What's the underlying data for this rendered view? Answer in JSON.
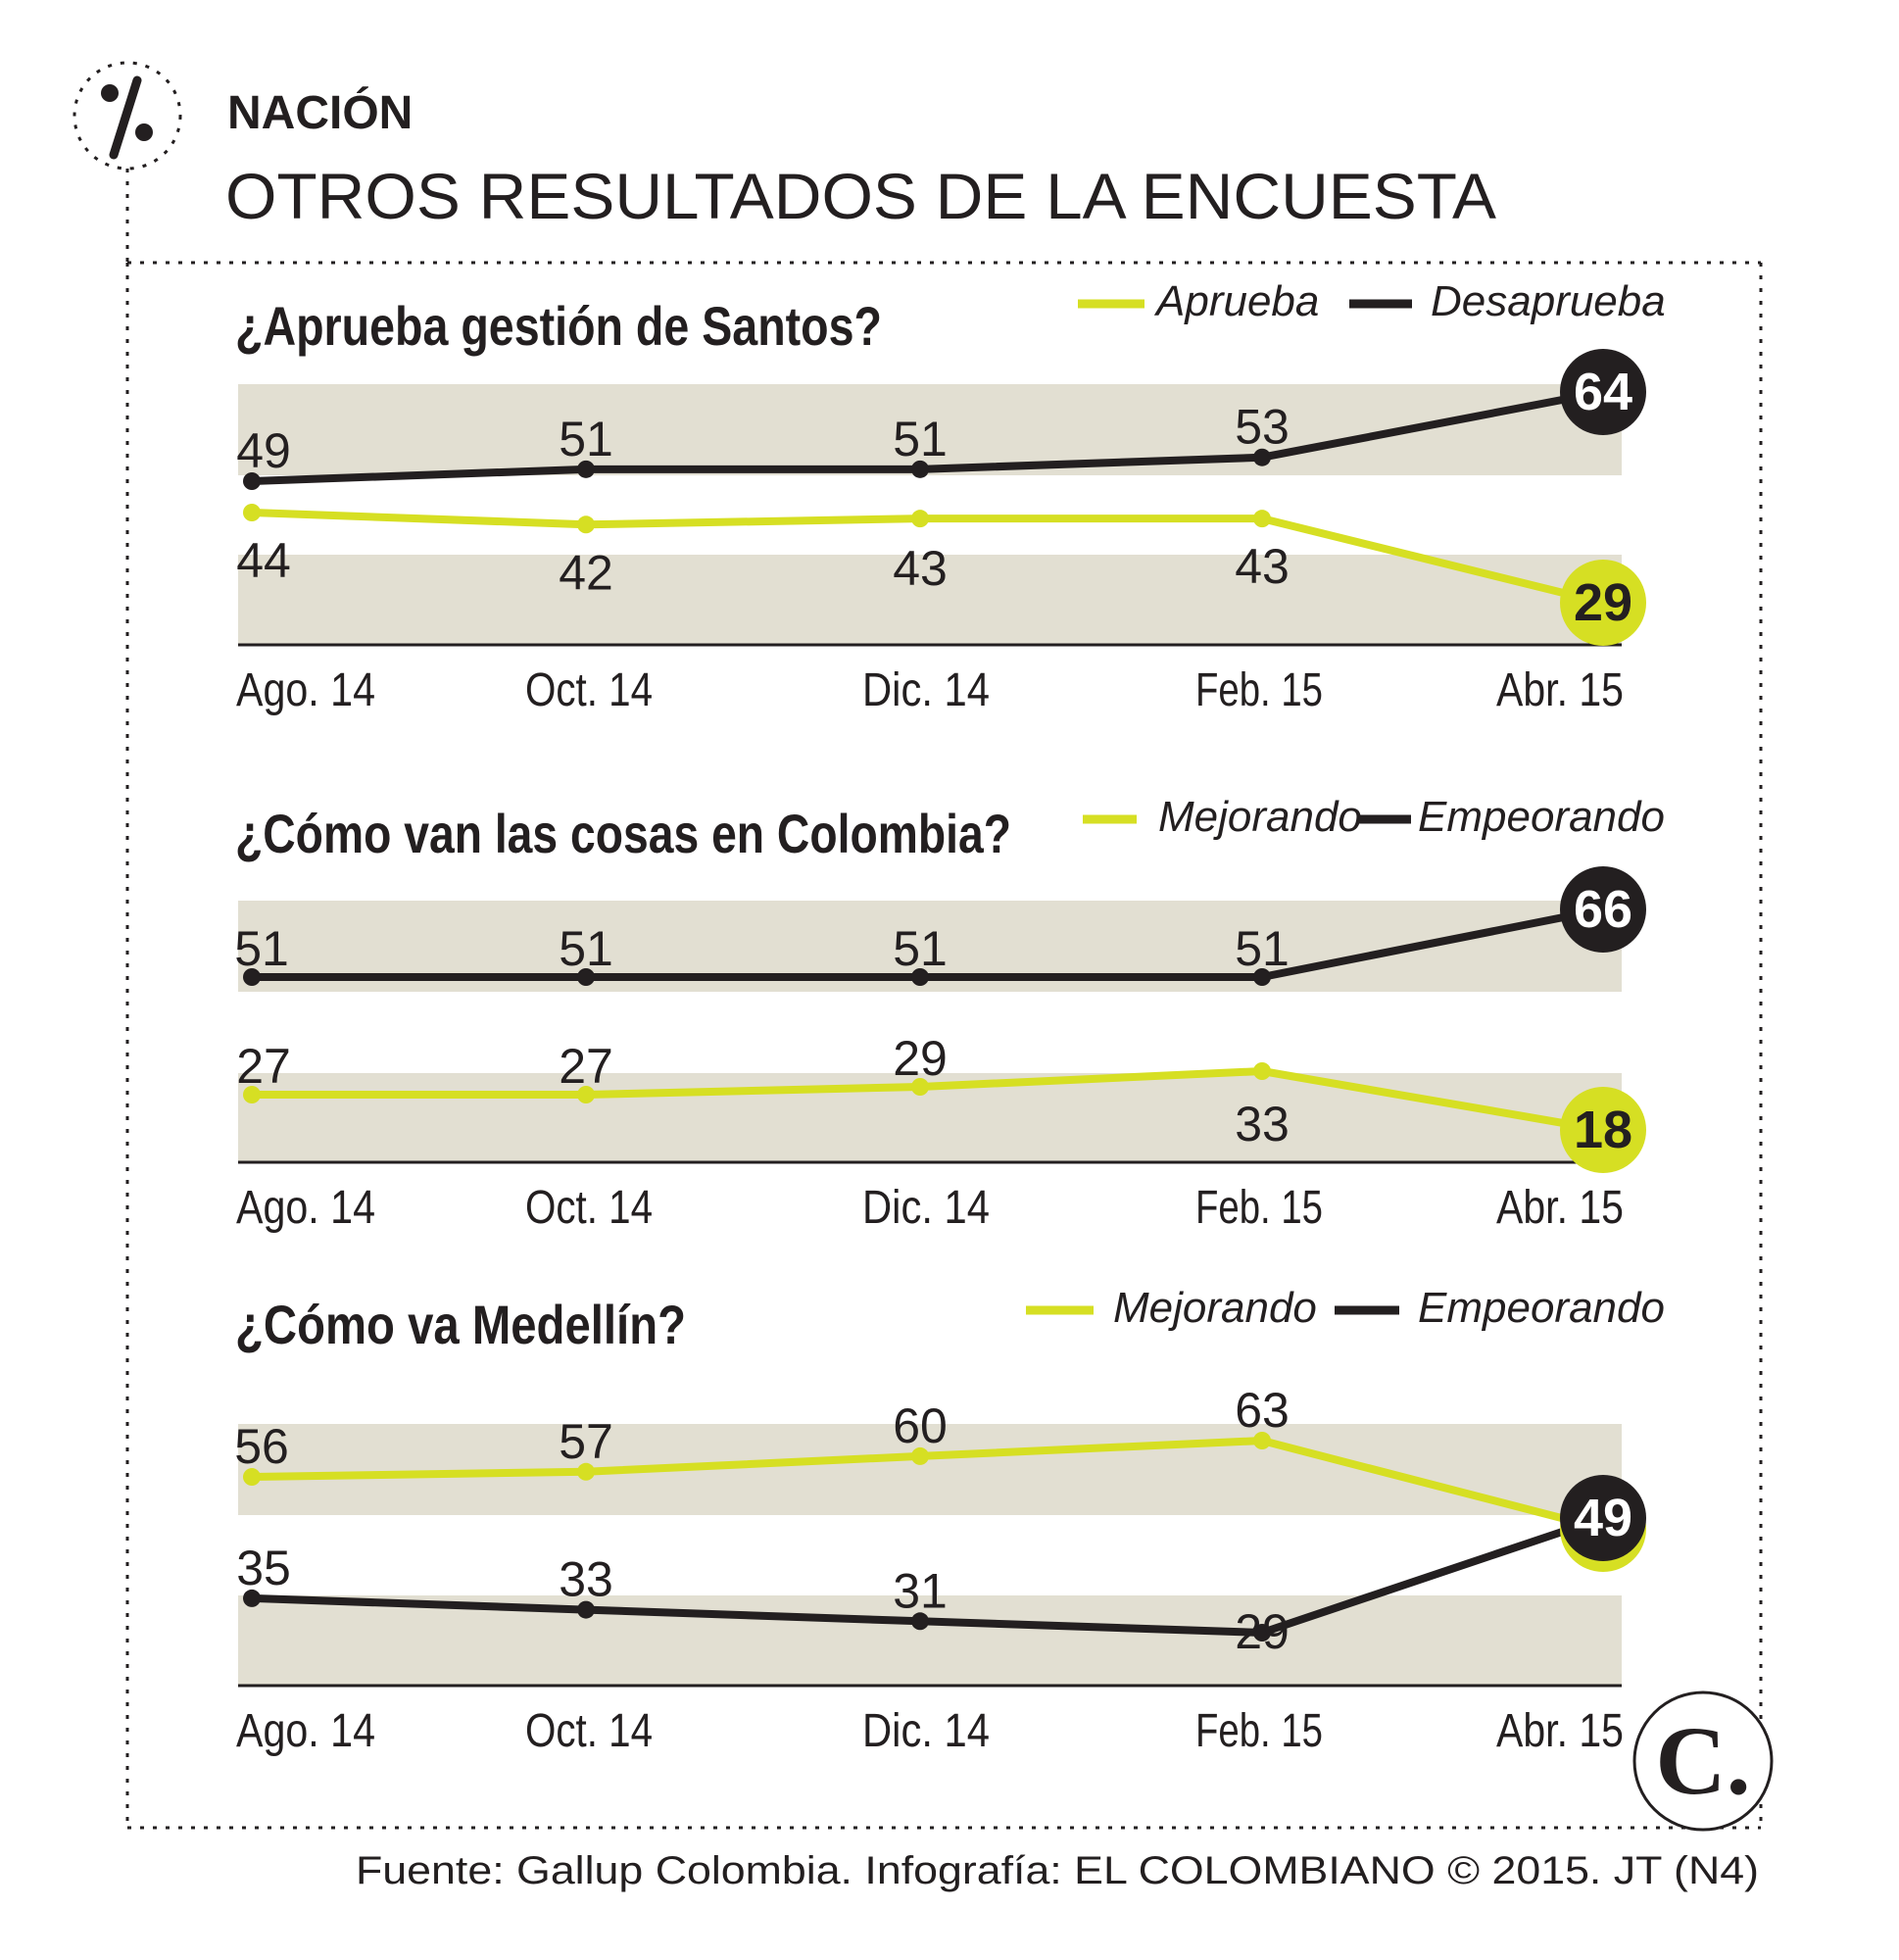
{
  "header": {
    "section": "NACIÓN",
    "title": "OTROS RESULTADOS DE LA ENCUESTA",
    "icon": "percent-icon"
  },
  "source": "Fuente: Gallup Colombia. Infografía: EL COLOMBIANO © 2015. JT (N4)",
  "logo": {
    "text": "C.",
    "icon": "el-colombiano-logo"
  },
  "colors": {
    "yellow": "#d6df23",
    "black": "#231f20",
    "band": "#e2dfd2",
    "frame": "#231f20"
  },
  "chart_data": [
    {
      "type": "line",
      "title": "¿Aprueba gestión de Santos?",
      "categories": [
        "Ago. 14",
        "Oct. 14",
        "Dic. 14",
        "Feb. 15",
        "Abr. 15"
      ],
      "series": [
        {
          "name": "Aprueba",
          "color": "#d6df23",
          "values": [
            44,
            42,
            43,
            43,
            29
          ]
        },
        {
          "name": "Desaprueba",
          "color": "#231f20",
          "values": [
            49,
            51,
            51,
            53,
            64
          ]
        }
      ],
      "legend": "top-right"
    },
    {
      "type": "line",
      "title": "¿Cómo van las cosas en Colombia?",
      "categories": [
        "Ago. 14",
        "Oct. 14",
        "Dic. 14",
        "Feb. 15",
        "Abr. 15"
      ],
      "series": [
        {
          "name": "Mejorando",
          "color": "#d6df23",
          "values": [
            27,
            27,
            29,
            33,
            18
          ]
        },
        {
          "name": "Empeorando",
          "color": "#231f20",
          "values": [
            51,
            51,
            51,
            51,
            66
          ]
        }
      ],
      "legend": "top-right"
    },
    {
      "type": "line",
      "title": "¿Cómo va Medellín?",
      "categories": [
        "Ago. 14",
        "Oct. 14",
        "Dic. 14",
        "Feb. 15",
        "Abr. 15"
      ],
      "series": [
        {
          "name": "Mejorando",
          "color": "#d6df23",
          "values": [
            56,
            57,
            60,
            63,
            46
          ]
        },
        {
          "name": "Empeorando",
          "color": "#231f20",
          "values": [
            35,
            33,
            31,
            29,
            49
          ]
        }
      ],
      "legend": "top-right"
    }
  ]
}
